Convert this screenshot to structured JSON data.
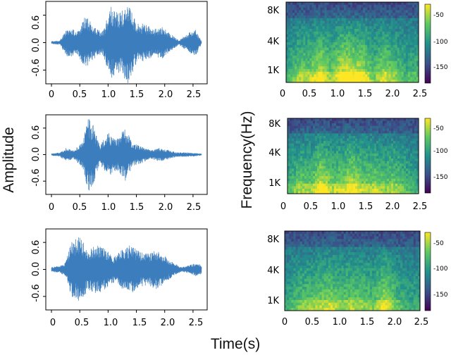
{
  "figure": {
    "y_label_left": "Amplitude",
    "y_label_right": "Frequency(Hz)",
    "x_label": "Time(s)"
  },
  "chart_data": [
    {
      "type": "line",
      "name": "waveform-1",
      "x_ticks": [
        "0",
        "0.5",
        "1.0",
        "1.5",
        "2.0",
        "2.5"
      ],
      "x_tick_values": [
        0,
        0.5,
        1.0,
        1.5,
        2.0,
        2.5
      ],
      "y_ticks": [
        "0.6",
        "0.0",
        "-0.6"
      ],
      "y_tick_values": [
        0.6,
        0.0,
        -0.6
      ],
      "xlim": [
        -0.1,
        2.75
      ],
      "ylim": [
        -0.9,
        0.9
      ],
      "color": "#3b7dbd",
      "envelope": {
        "time": [
          0,
          0.15,
          0.3,
          0.45,
          0.6,
          0.75,
          0.9,
          1.05,
          1.2,
          1.35,
          1.5,
          1.65,
          1.8,
          1.95,
          2.1,
          2.25,
          2.4,
          2.55,
          2.65
        ],
        "amplitude": [
          0.03,
          0.05,
          0.35,
          0.25,
          0.6,
          0.35,
          0.25,
          0.8,
          0.65,
          0.9,
          0.45,
          0.4,
          0.3,
          0.35,
          0.2,
          0.05,
          0.2,
          0.3,
          0.03
        ]
      }
    },
    {
      "type": "line",
      "name": "waveform-2",
      "x_ticks": [
        "0",
        "0.5",
        "1.0",
        "1.5",
        "2.0",
        "2.5"
      ],
      "x_tick_values": [
        0,
        0.5,
        1.0,
        1.5,
        2.0,
        2.5
      ],
      "y_ticks": [
        "0.6",
        "0.0",
        "-0.6"
      ],
      "y_tick_values": [
        0.6,
        0.0,
        -0.6
      ],
      "xlim": [
        -0.1,
        2.75
      ],
      "ylim": [
        -0.9,
        0.9
      ],
      "color": "#3b7dbd",
      "envelope": {
        "time": [
          0,
          0.15,
          0.25,
          0.4,
          0.55,
          0.65,
          0.75,
          0.85,
          1.0,
          1.15,
          1.3,
          1.45,
          1.6,
          1.75,
          1.9,
          2.05,
          2.2,
          2.35,
          2.5,
          2.65
        ],
        "amplitude": [
          0.02,
          0.05,
          0.15,
          0.1,
          0.3,
          0.85,
          0.65,
          0.2,
          0.5,
          0.35,
          0.6,
          0.25,
          0.2,
          0.1,
          0.15,
          0.12,
          0.05,
          0.05,
          0.04,
          0.02
        ]
      }
    },
    {
      "type": "line",
      "name": "waveform-3",
      "x_ticks": [
        "0",
        "0.5",
        "1.0",
        "1.5",
        "2.0",
        "2.5"
      ],
      "x_tick_values": [
        0,
        0.5,
        1.0,
        1.5,
        2.0,
        2.5
      ],
      "y_ticks": [
        "0.6",
        "0.0",
        "-0.6"
      ],
      "y_tick_values": [
        0.6,
        0.0,
        -0.6
      ],
      "xlim": [
        -0.1,
        2.75
      ],
      "ylim": [
        -0.9,
        0.9
      ],
      "color": "#3b7dbd",
      "envelope": {
        "time": [
          0,
          0.15,
          0.25,
          0.35,
          0.5,
          0.65,
          0.8,
          0.95,
          1.1,
          1.25,
          1.4,
          1.55,
          1.7,
          1.85,
          2.0,
          2.15,
          2.3,
          2.45,
          2.55,
          2.65
        ],
        "amplitude": [
          0.05,
          0.08,
          0.15,
          0.6,
          0.75,
          0.45,
          0.55,
          0.45,
          0.3,
          0.45,
          0.55,
          0.4,
          0.35,
          0.45,
          0.3,
          0.15,
          0.05,
          0.1,
          0.15,
          0.1
        ]
      }
    },
    {
      "type": "heatmap",
      "name": "spectrogram-1",
      "x_ticks": [
        "0",
        "0.5",
        "1.0",
        "1.5",
        "2.0",
        "2.5"
      ],
      "x_tick_values": [
        0,
        0.5,
        1.0,
        1.5,
        2.0,
        2.5
      ],
      "y_ticks": [
        "8K",
        "4K",
        "1K"
      ],
      "colorbar": {
        "ticks": [
          "-50",
          "-100",
          "-150"
        ],
        "tick_values": [
          -50,
          -100,
          -150
        ],
        "range": [
          -175,
          -35
        ]
      },
      "energy_profile": {
        "time": [
          0,
          0.25,
          0.45,
          0.65,
          0.85,
          1.05,
          1.25,
          1.45,
          1.65,
          1.85,
          2.05,
          2.25,
          2.45
        ],
        "level": [
          0.3,
          0.55,
          0.55,
          0.75,
          0.5,
          0.8,
          0.75,
          0.7,
          0.45,
          0.65,
          0.5,
          0.35,
          0.4
        ]
      }
    },
    {
      "type": "heatmap",
      "name": "spectrogram-2",
      "x_ticks": [
        "0",
        "0.5",
        "1.0",
        "1.5",
        "2.0",
        "2.5"
      ],
      "x_tick_values": [
        0,
        0.5,
        1.0,
        1.5,
        2.0,
        2.5
      ],
      "y_ticks": [
        "8K",
        "4K",
        "1K"
      ],
      "colorbar": {
        "ticks": [
          "-50",
          "-100",
          "-150"
        ],
        "tick_values": [
          -50,
          -100,
          -150
        ],
        "range": [
          -175,
          -35
        ]
      },
      "energy_profile": {
        "time": [
          0,
          0.25,
          0.45,
          0.65,
          0.85,
          1.05,
          1.25,
          1.45,
          1.65,
          1.85,
          2.05,
          2.25,
          2.45
        ],
        "level": [
          0.35,
          0.55,
          0.5,
          0.8,
          0.55,
          0.6,
          0.75,
          0.55,
          0.6,
          0.5,
          0.55,
          0.4,
          0.3
        ]
      }
    },
    {
      "type": "heatmap",
      "name": "spectrogram-3",
      "x_ticks": [
        "0",
        "0.5",
        "1.0",
        "1.5",
        "2.0",
        "2.5"
      ],
      "x_tick_values": [
        0,
        0.5,
        1.0,
        1.5,
        2.0,
        2.5
      ],
      "y_ticks": [
        "8K",
        "4K",
        "1K"
      ],
      "colorbar": {
        "ticks": [
          "-50",
          "-100",
          "-150"
        ],
        "tick_values": [
          -50,
          -100,
          -150
        ],
        "range": [
          -175,
          -35
        ]
      },
      "energy_profile": {
        "time": [
          0,
          0.25,
          0.45,
          0.65,
          0.85,
          1.05,
          1.25,
          1.45,
          1.65,
          1.85,
          2.05,
          2.25,
          2.45
        ],
        "level": [
          0.25,
          0.45,
          0.5,
          0.55,
          0.6,
          0.5,
          0.55,
          0.5,
          0.45,
          0.7,
          0.45,
          0.3,
          0.3
        ]
      }
    }
  ]
}
